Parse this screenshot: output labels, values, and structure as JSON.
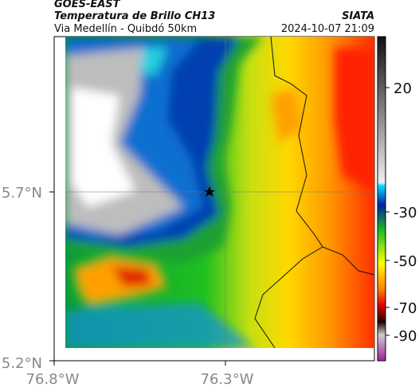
{
  "header": {
    "title": "GOES-EAST",
    "subtitle": "Temperatura de Brillo CH13",
    "region": "Via Medellín - Quibdó 50km",
    "organization": "SIATA",
    "datetime": "2024-10-07 21:09"
  },
  "axes": {
    "y_labels": [
      "5.7°N",
      "5.2°N"
    ],
    "x_labels": [
      "76.8°W",
      "76.3°W"
    ]
  },
  "colorbar": {
    "ticks": [
      20,
      -30,
      -50,
      -70,
      -90
    ]
  }
}
